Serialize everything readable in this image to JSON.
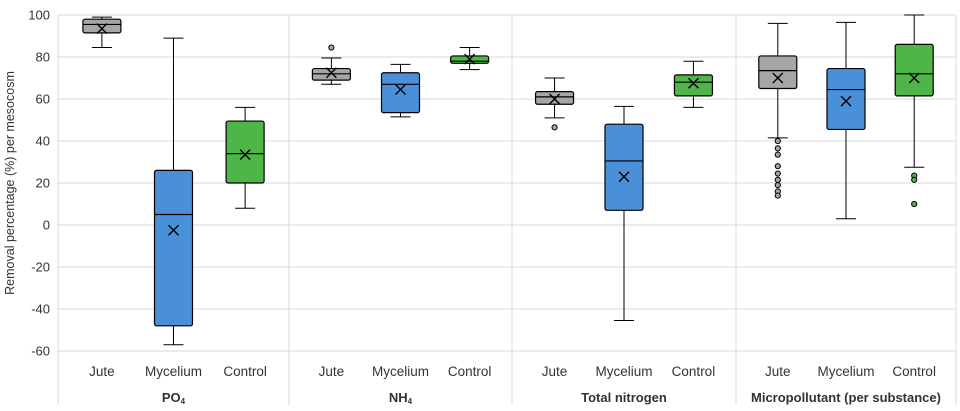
{
  "chart_data": {
    "type": "boxplot",
    "ylabel": "Removal percentage (%) per mesocosm",
    "ylim": [
      -60,
      100
    ],
    "yticks": [
      -60,
      -40,
      -20,
      0,
      20,
      40,
      60,
      80,
      100
    ],
    "grid": true,
    "categories": [
      "Jute",
      "Mycelium",
      "Control"
    ],
    "colors": {
      "Jute": "#a6a6a6",
      "Mycelium": "#4a90d9",
      "Control": "#4fb548"
    },
    "panels": [
      {
        "title": "PO",
        "title_sub": "4",
        "boxes": [
          {
            "category": "Jute",
            "min": 84.5,
            "q1": 91.5,
            "median": 95.5,
            "q3": 98,
            "max": 99,
            "mean": 93.5,
            "outliers": []
          },
          {
            "category": "Mycelium",
            "min": -57,
            "q1": -48,
            "median": 5,
            "q3": 26,
            "max": 89,
            "mean": -2.5,
            "outliers": []
          },
          {
            "category": "Control",
            "min": 8,
            "q1": 20,
            "median": 34,
            "q3": 49.5,
            "max": 56,
            "mean": 33.5,
            "outliers": []
          }
        ]
      },
      {
        "title": "NH",
        "title_sub": "4",
        "boxes": [
          {
            "category": "Jute",
            "min": 67,
            "q1": 69,
            "median": 72,
            "q3": 74.5,
            "max": 79.5,
            "mean": 72.5,
            "outliers": [
              84.5
            ]
          },
          {
            "category": "Mycelium",
            "min": 51.5,
            "q1": 53.5,
            "median": 67,
            "q3": 72.5,
            "max": 76.5,
            "mean": 64.5,
            "outliers": []
          },
          {
            "category": "Control",
            "min": 74,
            "q1": 77,
            "median": 78,
            "q3": 80.5,
            "max": 84.5,
            "mean": 79,
            "outliers": []
          }
        ]
      },
      {
        "title": "Total nitrogen",
        "title_sub": "",
        "boxes": [
          {
            "category": "Jute",
            "min": 51,
            "q1": 57.5,
            "median": 61,
            "q3": 63.5,
            "max": 70,
            "mean": 60,
            "outliers": [
              46.5
            ]
          },
          {
            "category": "Mycelium",
            "min": -45.5,
            "q1": 7,
            "median": 30.5,
            "q3": 48,
            "max": 56.5,
            "mean": 23,
            "outliers": []
          },
          {
            "category": "Control",
            "min": 56,
            "q1": 61.5,
            "median": 68,
            "q3": 71.5,
            "max": 78,
            "mean": 67.5,
            "outliers": []
          }
        ]
      },
      {
        "title": "Micropollutant (per substance)",
        "title_sub": "",
        "boxes": [
          {
            "category": "Jute",
            "min": 41.5,
            "q1": 65,
            "median": 73.5,
            "q3": 80.5,
            "max": 96,
            "mean": 70,
            "outliers": [
              40,
              36.5,
              33.5,
              28,
              24.5,
              21.5,
              19,
              16,
              14
            ]
          },
          {
            "category": "Mycelium",
            "min": 3,
            "q1": 45.5,
            "median": 64.5,
            "q3": 74.5,
            "max": 96.5,
            "mean": 59,
            "outliers": []
          },
          {
            "category": "Control",
            "min": 27.5,
            "q1": 61.5,
            "median": 72,
            "q3": 86,
            "max": 100,
            "mean": 70,
            "outliers": [
              23.5,
              21.5,
              10
            ]
          }
        ]
      }
    ]
  }
}
